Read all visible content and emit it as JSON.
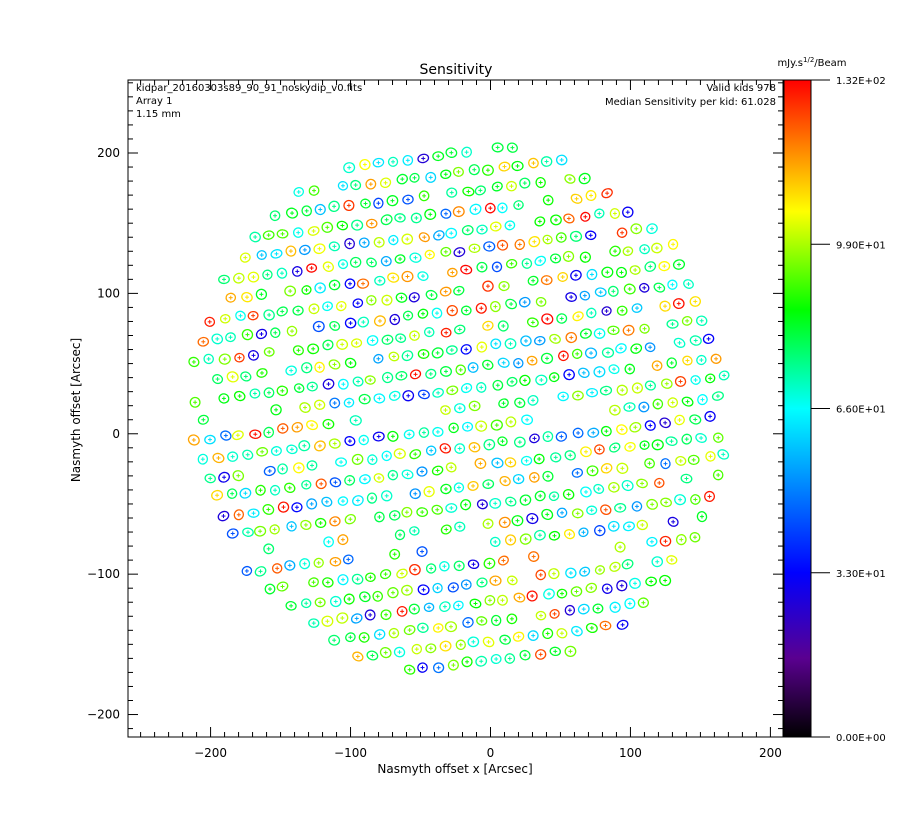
{
  "chart_data": {
    "type": "scatter",
    "title": "Sensitivity",
    "xlabel": "Nasmyth offset x [Arcsec]",
    "ylabel": "Nasmyth offset [Arcsec]",
    "xlim": [
      -259,
      209
    ],
    "ylim": [
      -216,
      252
    ],
    "xticks": [
      -200,
      -100,
      0,
      100,
      200
    ],
    "yticks": [
      -200,
      -100,
      0,
      100,
      200
    ],
    "xtick_labels": [
      "−200",
      "−100",
      "0",
      "100",
      "200"
    ],
    "ytick_labels": [
      "−200",
      "−100",
      "0",
      "100",
      "200"
    ],
    "annotations": {
      "file": "kidpar_20160303s89_90_91_noskydip_v0.fits",
      "array": "Array 1",
      "wavelength": "1.15 mm",
      "valid_kids": "Valid kids 978",
      "median": "Median Sensitivity per kid: 61.028"
    },
    "colorbar": {
      "unit_prefix": "mJy.s",
      "unit_sup": "1/2",
      "unit_suffix": "/Beam",
      "range": [
        0,
        132
      ],
      "tick_values": [
        132,
        99,
        66,
        33,
        0
      ],
      "tick_labels": [
        "1.32E+02",
        "9.90E+01",
        "6.60E+01",
        "3.30E+01",
        "0.00E+00"
      ],
      "stops": [
        [
          0,
          "#000000"
        ],
        [
          0.12,
          "#5a0090"
        ],
        [
          0.25,
          "#0000ff"
        ],
        [
          0.5,
          "#00ffff"
        ],
        [
          0.65,
          "#00ff00"
        ],
        [
          0.8,
          "#ffff00"
        ],
        [
          0.9,
          "#ff8000"
        ],
        [
          1,
          "#ff0000"
        ]
      ]
    },
    "focal_plane": {
      "center": [
        -22,
        18
      ],
      "radius": 193,
      "row_spacing": 14,
      "pitch": 10.5,
      "row_slope": 0.12,
      "n_kids": 978,
      "median_value": 61.0,
      "empty_bands_y": [
        [
          -90,
          -78
        ],
        [
          10,
          18
        ]
      ]
    }
  }
}
